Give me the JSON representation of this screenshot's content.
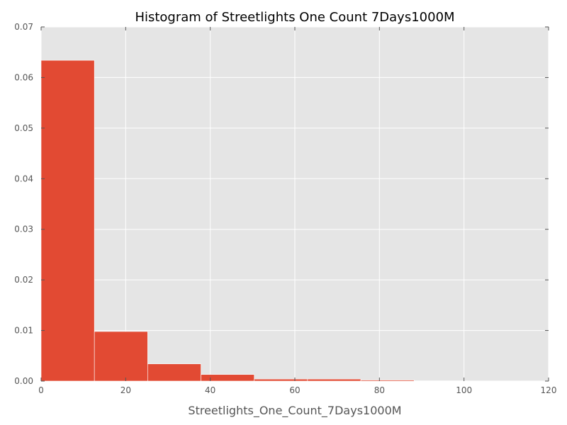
{
  "chart_data": {
    "type": "bar",
    "title": "Histogram of Streetlights One Count 7Days1000M",
    "xlabel": "Streetlights_One_Count_7Days1000M",
    "ylabel": "",
    "xlim": [
      0,
      120
    ],
    "ylim": [
      0,
      0.07
    ],
    "xticks": [
      "0",
      "20",
      "40",
      "60",
      "80",
      "100",
      "120"
    ],
    "yticks": [
      "0.00",
      "0.01",
      "0.02",
      "0.03",
      "0.04",
      "0.05",
      "0.06",
      "0.07"
    ],
    "bins": [
      {
        "start": 0,
        "end": 12.6,
        "density": 0.0634
      },
      {
        "start": 12.6,
        "end": 25.2,
        "density": 0.0098
      },
      {
        "start": 25.2,
        "end": 37.8,
        "density": 0.0034
      },
      {
        "start": 37.8,
        "end": 50.4,
        "density": 0.0013
      },
      {
        "start": 50.4,
        "end": 63.0,
        "density": 0.0004
      },
      {
        "start": 63.0,
        "end": 75.6,
        "density": 0.0004
      },
      {
        "start": 75.6,
        "end": 88.2,
        "density": 0.0002
      },
      {
        "start": 88.2,
        "end": 100.8,
        "density": 5e-05
      },
      {
        "start": 100.8,
        "end": 113.4,
        "density": 3e-05
      }
    ],
    "grid": true,
    "bar_color": "#E24A33",
    "background_color": "#E5E5E5",
    "grid_color": "#FFFFFF"
  }
}
